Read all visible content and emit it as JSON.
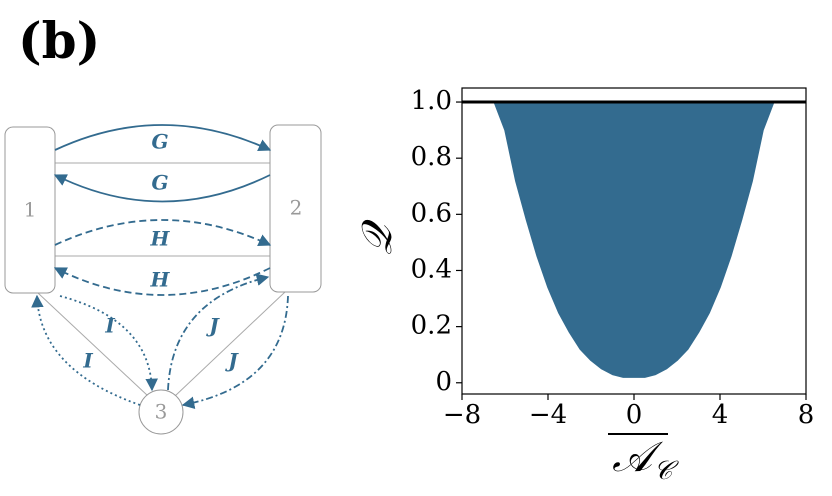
{
  "panel_label": "(b)",
  "diagram": {
    "nodes": [
      {
        "label": "1"
      },
      {
        "label": "2"
      },
      {
        "label": "3"
      }
    ],
    "edges": [
      {
        "label": "G"
      },
      {
        "label": "G"
      },
      {
        "label": "H"
      },
      {
        "label": "H"
      },
      {
        "label": "I"
      },
      {
        "label": "I"
      },
      {
        "label": "J"
      },
      {
        "label": "J"
      }
    ]
  },
  "chart_data": {
    "type": "area",
    "color": "#336b8f",
    "x": [
      -6.5,
      -6,
      -5.5,
      -5,
      -4.5,
      -4,
      -3.5,
      -3,
      -2.5,
      -2,
      -1.5,
      -1,
      -0.5,
      0,
      0.5,
      1,
      1.5,
      2,
      2.5,
      3,
      3.5,
      4,
      4.5,
      5,
      5.5,
      6,
      6.5
    ],
    "y_low": [
      1.0,
      0.9,
      0.72,
      0.58,
      0.45,
      0.34,
      0.25,
      0.18,
      0.12,
      0.08,
      0.05,
      0.03,
      0.02,
      0.02,
      0.02,
      0.03,
      0.05,
      0.08,
      0.12,
      0.18,
      0.25,
      0.34,
      0.45,
      0.58,
      0.72,
      0.9,
      1.0
    ],
    "y_high": [
      1.0,
      1.0,
      1.0,
      1.0,
      1.0,
      1.0,
      1.0,
      1.0,
      1.0,
      1.0,
      1.0,
      1.0,
      1.0,
      1.0,
      1.0,
      1.0,
      1.0,
      1.0,
      1.0,
      1.0,
      1.0,
      1.0,
      1.0,
      1.0,
      1.0,
      1.0,
      1.0
    ],
    "hline": 1.0,
    "xlim": [
      -8,
      8
    ],
    "xticks": [
      {
        "value": -8,
        "label": "−8"
      },
      {
        "value": -4,
        "label": "−4"
      },
      0,
      4,
      8
    ],
    "ylim": [
      -0.04,
      1.05
    ],
    "yticks": [
      0,
      0.2,
      0.4,
      0.6,
      0.8,
      {
        "value": 1,
        "label": "1.0"
      }
    ],
    "xlabel": "𝒜",
    "xlabel_sub": "𝒞",
    "ylabel": "𝒬"
  }
}
